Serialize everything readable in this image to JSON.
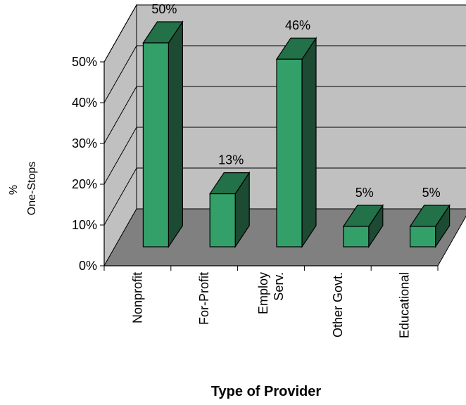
{
  "chart_data": {
    "type": "bar",
    "categories": [
      [
        "Nonprofit"
      ],
      [
        "For-Profit"
      ],
      [
        "Employ",
        "Serv."
      ],
      [
        "Other Govt."
      ],
      [
        "Educational"
      ]
    ],
    "values": [
      50,
      13,
      46,
      5,
      5
    ],
    "data_labels": [
      "50%",
      "13%",
      "46%",
      "5%",
      "5%"
    ],
    "title": "",
    "xlabel": "Type of Provider",
    "ylabel": [
      "%",
      "One-Stops"
    ],
    "ylim": [
      0,
      50
    ],
    "yticks": [
      0,
      10,
      20,
      30,
      40,
      50
    ],
    "ytick_labels": [
      "0%",
      "10%",
      "20%",
      "30%",
      "40%",
      "50%"
    ],
    "three_d": true,
    "grid": true,
    "colors": {
      "bar_front": "#33a06a",
      "bar_top": "#237148",
      "bar_side": "#1c4a33",
      "back_wall": "#c0c0c0",
      "side_wall": "#c0c0c0",
      "floor": "#808080",
      "gridline": "#000000"
    }
  }
}
